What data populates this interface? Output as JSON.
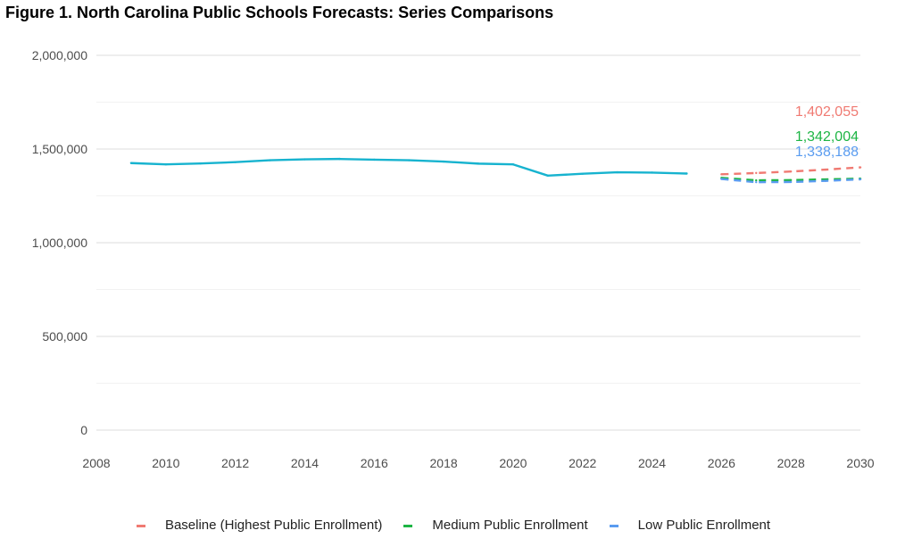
{
  "figure": {
    "title": "Figure 1. North Carolina Public Schools Forecasts: Series Comparisons"
  },
  "chart_data": {
    "type": "line",
    "title": "Figure 1. North Carolina Public Schools Forecasts: Series Comparisons",
    "xlabel": "",
    "ylabel": "",
    "xlim": [
      2008,
      2030
    ],
    "ylim": [
      0,
      2000000
    ],
    "x_ticks": [
      "2008",
      "2010",
      "2012",
      "2014",
      "2016",
      "2018",
      "2020",
      "2022",
      "2024",
      "2026",
      "2028",
      "2030"
    ],
    "y_ticks": [
      "0",
      "500,000",
      "1,000,000",
      "1,500,000",
      "2,000,000"
    ],
    "grid": true,
    "legend_position": "bottom",
    "historical": {
      "color": "#17b3cf",
      "x": [
        2009,
        2010,
        2011,
        2012,
        2013,
        2014,
        2015,
        2016,
        2017,
        2018,
        2019,
        2020,
        2021,
        2022,
        2023,
        2024,
        2025
      ],
      "values": [
        1425000,
        1418000,
        1423000,
        1430000,
        1440000,
        1445000,
        1447000,
        1443000,
        1440000,
        1433000,
        1422000,
        1418000,
        1358000,
        1368000,
        1376000,
        1374000,
        1369000
      ]
    },
    "series": [
      {
        "name": "Baseline (Highest Public Enrollment)",
        "color": "#f07a72",
        "dash": true,
        "end_label": "1,402,055",
        "x": [
          2026,
          2027,
          2028,
          2029,
          2030
        ],
        "values": [
          1365000,
          1372000,
          1380000,
          1390000,
          1402055
        ]
      },
      {
        "name": "Medium Public Enrollment",
        "color": "#1db544",
        "dash": true,
        "end_label": "1,342,004",
        "x": [
          2026,
          2027,
          2028,
          2029,
          2030
        ],
        "values": [
          1346000,
          1333000,
          1334000,
          1338000,
          1342004
        ]
      },
      {
        "name": "Low Public Enrollment",
        "color": "#5a9cf0",
        "dash": true,
        "end_label": "1,338,188",
        "x": [
          2026,
          2027,
          2028,
          2029,
          2030
        ],
        "values": [
          1340000,
          1323000,
          1324000,
          1330000,
          1338188
        ]
      }
    ]
  }
}
